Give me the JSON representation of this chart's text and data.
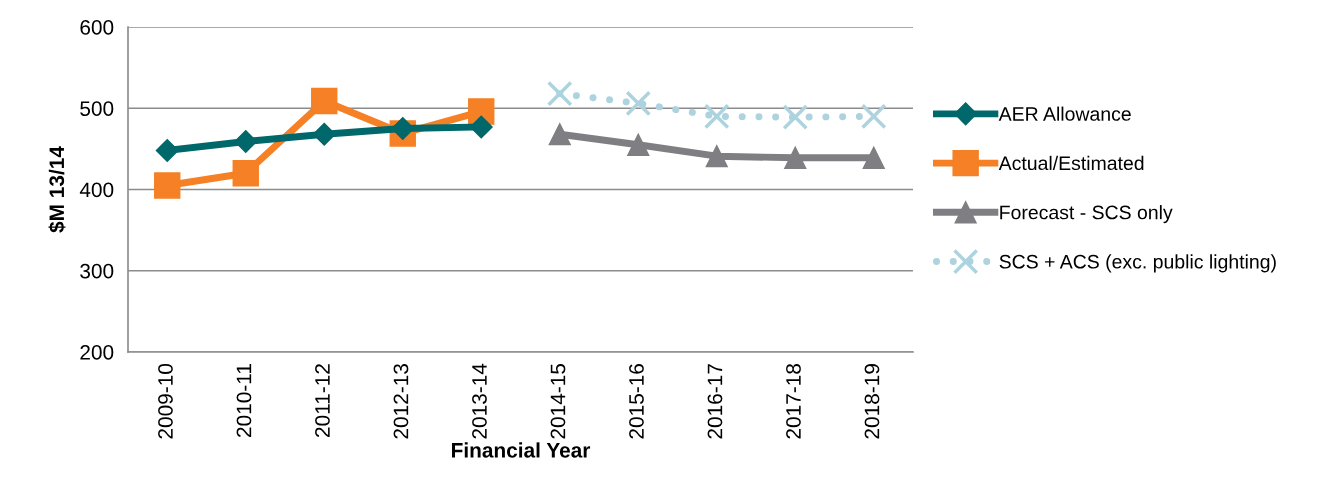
{
  "chart_data": {
    "type": "line",
    "xlabel": "Financial Year",
    "ylabel": "$M 13/14",
    "categories": [
      "2009-10",
      "2010-11",
      "2011-12",
      "2012-13",
      "2013-14",
      "2014-15",
      "2015-16",
      "2016-17",
      "2017-18",
      "2018-19"
    ],
    "series": [
      {
        "name": "AER Allowance",
        "color": "#00676b",
        "marker": "diamond",
        "line_style": "solid",
        "values": [
          448,
          459,
          468,
          475,
          477,
          null,
          null,
          null,
          null,
          null
        ]
      },
      {
        "name": "Actual/Estimated",
        "color": "#f58025",
        "marker": "square",
        "line_style": "solid",
        "values": [
          405,
          420,
          509,
          469,
          496,
          null,
          null,
          null,
          null,
          null
        ]
      },
      {
        "name": "Forecast - SCS only",
        "color": "#7f7f83",
        "marker": "triangle",
        "line_style": "solid",
        "values": [
          null,
          null,
          null,
          null,
          null,
          468,
          455,
          441,
          439,
          439
        ]
      },
      {
        "name": "SCS + ACS (exc. public lighting)",
        "color": "#add3df",
        "marker": "cross",
        "line_style": "dotted",
        "values": [
          null,
          null,
          null,
          null,
          null,
          518,
          506,
          490,
          489,
          490
        ]
      }
    ],
    "ylim": [
      200,
      600
    ],
    "yticks": [
      200,
      300,
      400,
      500,
      600
    ],
    "grid": "y",
    "legend": "right"
  }
}
